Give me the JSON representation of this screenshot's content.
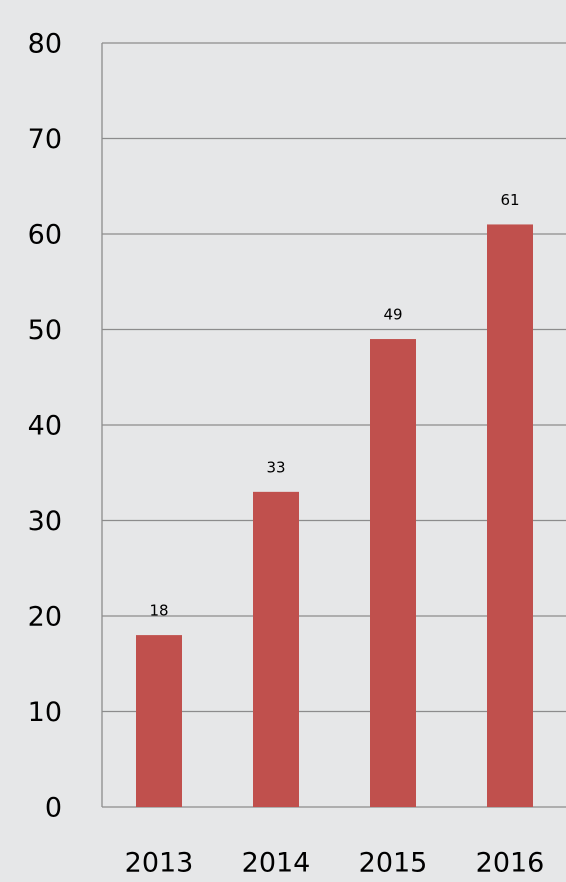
{
  "chart_data": {
    "type": "bar",
    "categories": [
      "2013",
      "2014",
      "2015",
      "2016"
    ],
    "values": [
      18,
      33,
      49,
      61
    ],
    "color": "#c0504d",
    "ylim": [
      0,
      80
    ],
    "yticks": [
      0,
      10,
      20,
      30,
      40,
      50,
      60,
      70,
      80
    ],
    "grid": true
  }
}
